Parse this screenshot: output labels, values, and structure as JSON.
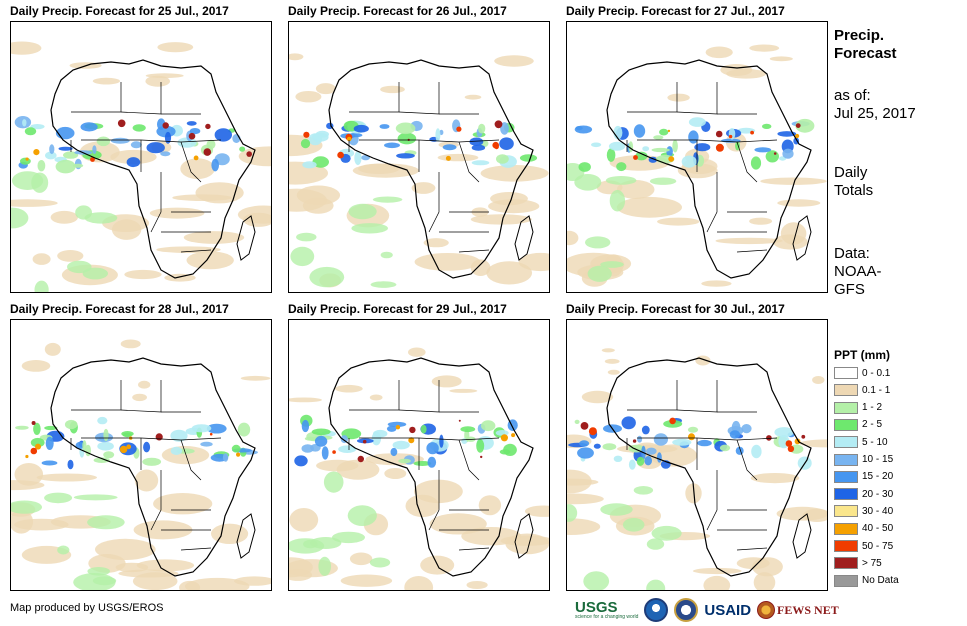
{
  "panels": [
    {
      "title": "Daily Precip. Forecast for 25 Jul., 2017"
    },
    {
      "title": "Daily Precip. Forecast for 26 Jul., 2017"
    },
    {
      "title": "Daily Precip. Forecast for 27 Jul., 2017"
    },
    {
      "title": "Daily Precip. Forecast for 28 Jul., 2017"
    },
    {
      "title": "Daily Precip. Forecast for 29 Jul., 2017"
    },
    {
      "title": "Daily Precip. Forecast for 30 Jul., 2017"
    }
  ],
  "side_info": {
    "title_line1": "Precip.",
    "title_line2": "Forecast",
    "asof_line1": "as of:",
    "asof_line2": "Jul 25, 2017",
    "totals_line1": "Daily",
    "totals_line2": "Totals",
    "data_line1": "Data:",
    "data_line2": "NOAA-",
    "data_line3": "GFS"
  },
  "legend": {
    "title": "PPT (mm)",
    "items": [
      {
        "label": "0 - 0.1",
        "color": "#ffffff"
      },
      {
        "label": "0.1 - 1",
        "color": "#eed8b4"
      },
      {
        "label": "1 - 2",
        "color": "#b4f0a8"
      },
      {
        "label": "2 - 5",
        "color": "#6ee86e"
      },
      {
        "label": "5 - 10",
        "color": "#b4ecf4"
      },
      {
        "label": "10 - 15",
        "color": "#78b4f0"
      },
      {
        "label": "15 - 20",
        "color": "#4696f0"
      },
      {
        "label": "20 - 30",
        "color": "#1e64e6"
      },
      {
        "label": "30 - 40",
        "color": "#fae68c"
      },
      {
        "label": "40 - 50",
        "color": "#f5a000"
      },
      {
        "label": "50 - 75",
        "color": "#f03c00"
      },
      {
        "label": "> 75",
        "color": "#a01e1e"
      },
      {
        "label": "No Data",
        "color": "#999999"
      }
    ]
  },
  "footer": {
    "credit": "Map produced by USGS/EROS",
    "logos": {
      "usgs": "USGS",
      "usgs_tagline": "science for a changing world",
      "usaid": "USAID",
      "fews": "FEWS NET"
    }
  }
}
